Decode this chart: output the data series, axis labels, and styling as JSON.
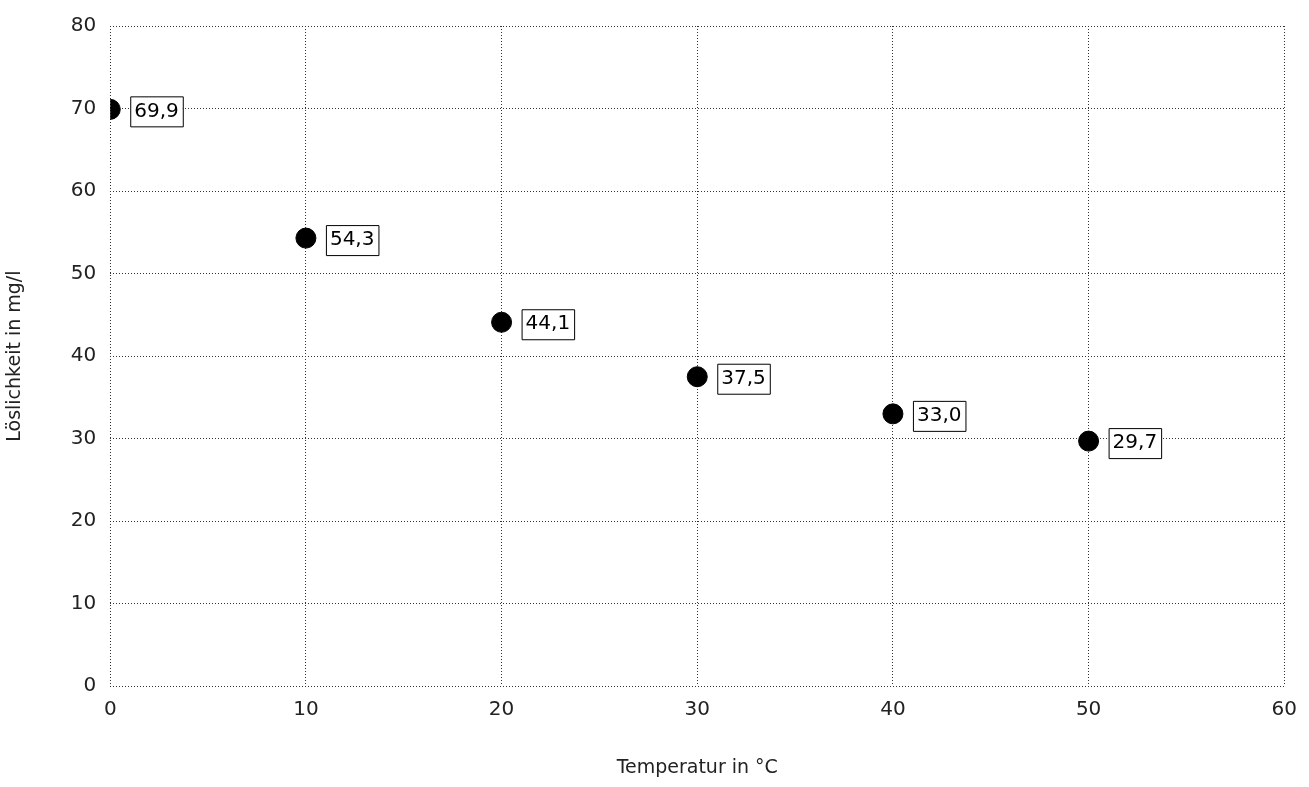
{
  "chart_data": {
    "type": "scatter",
    "xlabel": "Temperatur in °C",
    "ylabel": "Löslichkeit in mg/l",
    "x": [
      0,
      10,
      20,
      30,
      40,
      50
    ],
    "values": [
      69.9,
      54.3,
      44.1,
      37.5,
      33.0,
      29.7
    ],
    "value_labels": [
      "69,9",
      "54,3",
      "44,1",
      "37,5",
      "33,0",
      "29,7"
    ],
    "color": "#000000",
    "marker": "circle",
    "xlim": [
      0,
      60
    ],
    "xticks": [
      0,
      10,
      20,
      30,
      40,
      50,
      60
    ],
    "ylim": [
      0,
      80
    ],
    "yticks": [
      0,
      10,
      20,
      30,
      40,
      50,
      60,
      70,
      80
    ],
    "grid": true,
    "legend": false
  }
}
